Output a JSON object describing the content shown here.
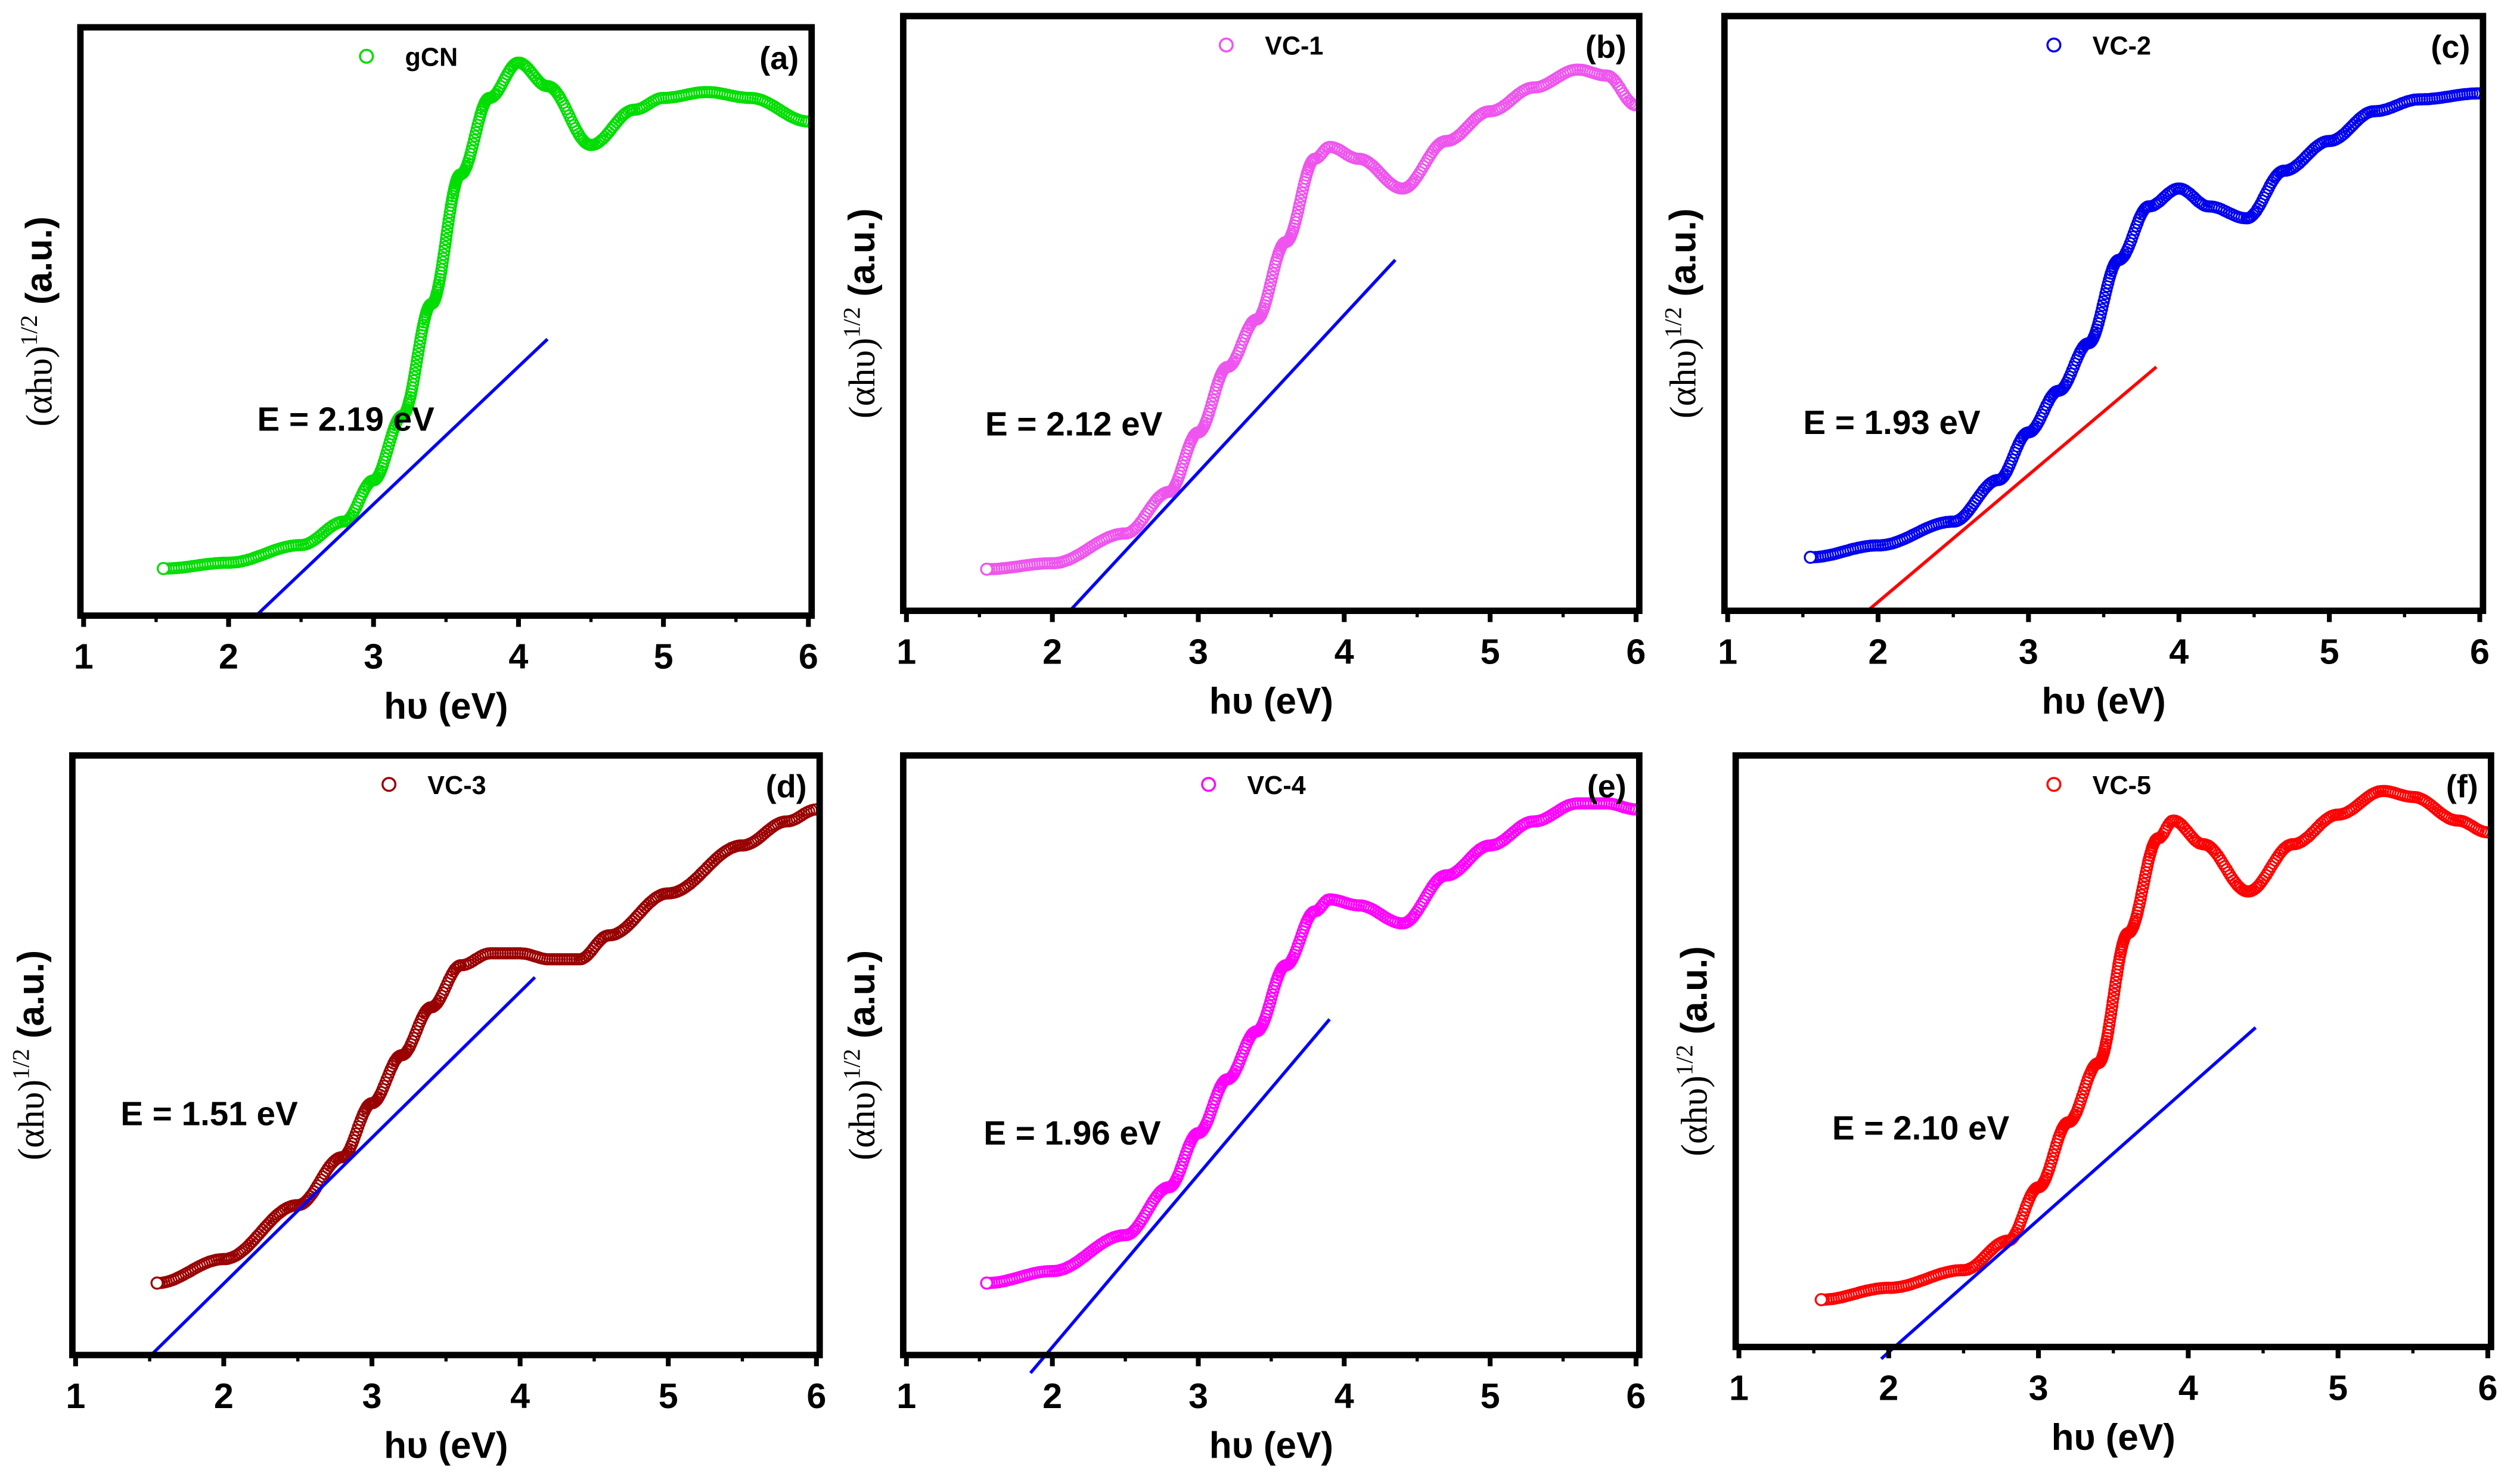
{
  "chart_data": [
    {
      "type": "scatter",
      "panel": "(a)",
      "legend": "gCN",
      "color": "#00dd00",
      "line_color": "#0000ff",
      "xlabel": "hυ (eV)",
      "ylabel_main": "(αhυ)",
      "ylabel_sup": "1/2",
      "ylabel_unit": " (a.u.)",
      "xlim": [
        1,
        6
      ],
      "ylim": [
        0,
        1
      ],
      "xticks": [
        "1",
        "2",
        "3",
        "4",
        "5",
        "6"
      ],
      "bandgap_label": "E = 2.19 eV",
      "bandgap_eV": 2.19,
      "x": [
        1.55,
        2.0,
        2.5,
        2.8,
        3.0,
        3.2,
        3.4,
        3.6,
        3.8,
        4.0,
        4.2,
        4.5,
        4.8,
        5.0,
        5.3,
        5.6,
        6.0
      ],
      "y": [
        0.08,
        0.09,
        0.12,
        0.16,
        0.23,
        0.34,
        0.53,
        0.75,
        0.88,
        0.94,
        0.9,
        0.8,
        0.86,
        0.88,
        0.89,
        0.88,
        0.84
      ],
      "tangent": [
        [
          2.19,
          0
        ],
        [
          4.2,
          0.47
        ]
      ]
    },
    {
      "type": "scatter",
      "panel": "(b)",
      "legend": "VC-1",
      "color": "#ee55ee",
      "line_color": "#0000ff",
      "xlabel": "hυ (eV)",
      "ylabel_main": "(αhυ)",
      "ylabel_sup": "1/2",
      "ylabel_unit": " (a.u.)",
      "xlim": [
        1,
        6
      ],
      "ylim": [
        0,
        1
      ],
      "xticks": [
        "1",
        "2",
        "3",
        "4",
        "5",
        "6"
      ],
      "bandgap_label": "E = 2.12 eV",
      "bandgap_eV": 2.12,
      "x": [
        1.55,
        2.0,
        2.5,
        2.8,
        3.0,
        3.2,
        3.4,
        3.6,
        3.8,
        3.9,
        4.1,
        4.4,
        4.7,
        5.0,
        5.3,
        5.6,
        5.8,
        6.0
      ],
      "y": [
        0.07,
        0.08,
        0.13,
        0.2,
        0.3,
        0.41,
        0.49,
        0.62,
        0.76,
        0.78,
        0.76,
        0.71,
        0.79,
        0.84,
        0.88,
        0.91,
        0.9,
        0.85
      ],
      "tangent": [
        [
          2.12,
          0
        ],
        [
          4.35,
          0.59
        ]
      ]
    },
    {
      "type": "scatter",
      "panel": "(c)",
      "legend": "VC-2",
      "color": "#0000ee",
      "line_color": "#ff0000",
      "xlabel": "hυ (eV)",
      "ylabel_main": "(αhυ)",
      "ylabel_sup": "1/2",
      "ylabel_unit": " (a.u.)",
      "xlim": [
        1,
        6
      ],
      "ylim": [
        0,
        1
      ],
      "xticks": [
        "1",
        "2",
        "3",
        "4",
        "5",
        "6"
      ],
      "bandgap_label": "E = 1.93 eV",
      "bandgap_eV": 1.93,
      "x": [
        1.55,
        2.0,
        2.5,
        2.8,
        3.0,
        3.2,
        3.4,
        3.6,
        3.8,
        4.0,
        4.2,
        4.45,
        4.7,
        5.0,
        5.3,
        5.6,
        6.0
      ],
      "y": [
        0.09,
        0.11,
        0.15,
        0.22,
        0.3,
        0.37,
        0.45,
        0.59,
        0.68,
        0.71,
        0.68,
        0.66,
        0.74,
        0.79,
        0.84,
        0.86,
        0.87
      ],
      "tangent": [
        [
          1.93,
          0
        ],
        [
          3.85,
          0.41
        ]
      ]
    },
    {
      "type": "scatter",
      "panel": "(d)",
      "legend": "VC-3",
      "color": "#990000",
      "line_color": "#0000ff",
      "xlabel": "hυ (eV)",
      "ylabel_main": "(αhυ)",
      "ylabel_sup": "1/2",
      "ylabel_unit": " (a.u.)",
      "xlim": [
        1,
        6
      ],
      "ylim": [
        0,
        1
      ],
      "xticks": [
        "1",
        "2",
        "3",
        "4",
        "5",
        "6"
      ],
      "bandgap_label": "E = 1.51 eV",
      "bandgap_eV": 1.51,
      "x": [
        1.55,
        2.0,
        2.5,
        2.8,
        3.0,
        3.2,
        3.4,
        3.6,
        3.8,
        4.0,
        4.2,
        4.4,
        4.6,
        5.0,
        5.5,
        5.8,
        6.0
      ],
      "y": [
        0.12,
        0.16,
        0.25,
        0.33,
        0.42,
        0.5,
        0.58,
        0.65,
        0.67,
        0.67,
        0.66,
        0.66,
        0.7,
        0.77,
        0.85,
        0.89,
        0.91
      ],
      "tangent": [
        [
          1.51,
          0
        ],
        [
          4.1,
          0.63
        ]
      ]
    },
    {
      "type": "scatter",
      "panel": "(e)",
      "legend": "VC-4",
      "color": "#ff00ff",
      "line_color": "#0000ff",
      "xlabel": "hυ (eV)",
      "ylabel_main": "(αhυ)",
      "ylabel_sup": "1/2",
      "ylabel_unit": " (a.u.)",
      "xlim": [
        1,
        6
      ],
      "ylim": [
        0,
        1
      ],
      "xticks": [
        "1",
        "2",
        "3",
        "4",
        "5",
        "6"
      ],
      "bandgap_label": "E = 1.96 eV",
      "bandgap_eV": 1.96,
      "x": [
        1.55,
        2.0,
        2.5,
        2.8,
        3.0,
        3.2,
        3.4,
        3.6,
        3.8,
        3.9,
        4.1,
        4.4,
        4.7,
        5.0,
        5.3,
        5.6,
        5.8,
        6.0
      ],
      "y": [
        0.12,
        0.14,
        0.2,
        0.28,
        0.37,
        0.46,
        0.54,
        0.65,
        0.74,
        0.76,
        0.75,
        0.72,
        0.8,
        0.85,
        0.89,
        0.92,
        0.92,
        0.91
      ],
      "tangent": [
        [
          1.85,
          -0.03
        ],
        [
          3.9,
          0.56
        ]
      ]
    },
    {
      "type": "scatter",
      "panel": "(f)",
      "legend": "VC-5",
      "color": "#ff0000",
      "line_color": "#0000ff",
      "xlabel": "hυ (eV)",
      "ylabel_main": "(αhυ)",
      "ylabel_sup": "1/2",
      "ylabel_unit": " (a.u.)",
      "xlim": [
        1,
        6
      ],
      "ylim": [
        0,
        1
      ],
      "xticks": [
        "1",
        "2",
        "3",
        "4",
        "5",
        "6"
      ],
      "bandgap_label": "E = 2.10 eV",
      "bandgap_eV": 2.1,
      "x": [
        1.55,
        2.0,
        2.5,
        2.8,
        3.0,
        3.2,
        3.4,
        3.6,
        3.8,
        3.9,
        4.1,
        4.4,
        4.7,
        5.0,
        5.3,
        5.5,
        5.8,
        6.0
      ],
      "y": [
        0.08,
        0.1,
        0.13,
        0.18,
        0.27,
        0.38,
        0.48,
        0.7,
        0.86,
        0.89,
        0.85,
        0.77,
        0.85,
        0.9,
        0.94,
        0.93,
        0.89,
        0.87
      ],
      "tangent": [
        [
          1.95,
          -0.02
        ],
        [
          4.45,
          0.54
        ]
      ]
    }
  ]
}
